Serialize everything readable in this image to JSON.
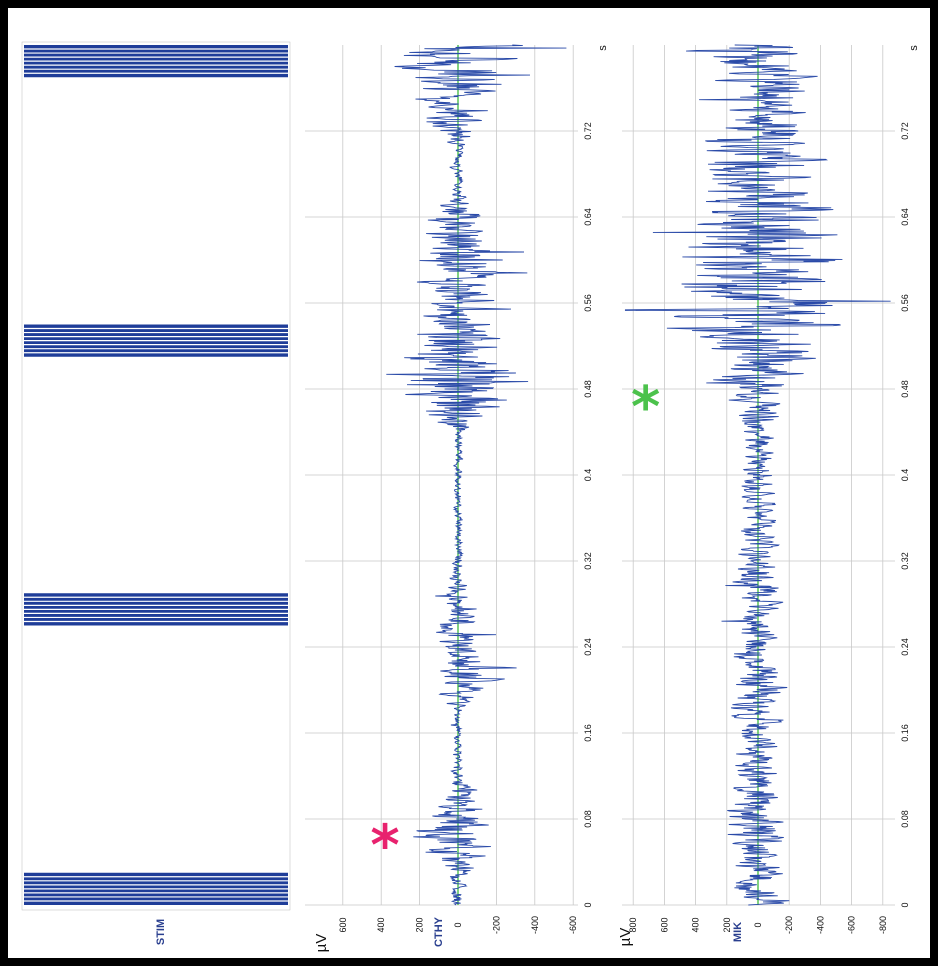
{
  "chart_data": [
    {
      "type": "line",
      "channel_label": "STIM",
      "series": [
        {
          "stim_bursts": [
            {
              "start": 0.0,
              "end": 0.03
            },
            {
              "start": 0.26,
              "end": 0.29
            },
            {
              "start": 0.51,
              "end": 0.54
            },
            {
              "start": 0.77,
              "end": 0.8
            }
          ]
        }
      ]
    },
    {
      "type": "line",
      "channel_label": "CTHY",
      "ylabel": "µV",
      "xlabel": "s",
      "ylim": [
        -650,
        650
      ],
      "yticks": [
        600,
        400,
        200,
        0,
        -200,
        -400,
        -600
      ],
      "xlim": [
        0,
        0.8
      ],
      "xticks": [
        0,
        0.08,
        0.16,
        0.24,
        0.32,
        0.4,
        0.48,
        0.56,
        0.64,
        0.72
      ],
      "xtick_labels": [
        "0",
        "0.08",
        "0.16",
        "0.24",
        "0.32",
        "0.4",
        "0.48",
        "0.56",
        "0.64",
        "0.72"
      ],
      "marker": {
        "symbol": "*",
        "x": 0.058,
        "y": 380,
        "color": "#e8226e"
      },
      "envelope": [
        {
          "t": 0.0,
          "amp": 60
        },
        {
          "t": 0.03,
          "amp": 80
        },
        {
          "t": 0.05,
          "amp": 260
        },
        {
          "t": 0.075,
          "amp": 300
        },
        {
          "t": 0.1,
          "amp": 120
        },
        {
          "t": 0.13,
          "amp": 25
        },
        {
          "t": 0.18,
          "amp": 30
        },
        {
          "t": 0.21,
          "amp": 270
        },
        {
          "t": 0.235,
          "amp": 160
        },
        {
          "t": 0.27,
          "amp": 150
        },
        {
          "t": 0.3,
          "amp": 60
        },
        {
          "t": 0.33,
          "amp": 25
        },
        {
          "t": 0.44,
          "amp": 30
        },
        {
          "t": 0.46,
          "amp": 300
        },
        {
          "t": 0.485,
          "amp": 560
        },
        {
          "t": 0.52,
          "amp": 380
        },
        {
          "t": 0.56,
          "amp": 250
        },
        {
          "t": 0.6,
          "amp": 300
        },
        {
          "t": 0.645,
          "amp": 180
        },
        {
          "t": 0.66,
          "amp": 40
        },
        {
          "t": 0.705,
          "amp": 40
        },
        {
          "t": 0.73,
          "amp": 260
        },
        {
          "t": 0.76,
          "amp": 280
        },
        {
          "t": 0.8,
          "amp": 520
        }
      ]
    },
    {
      "type": "line",
      "channel_label": "MIK",
      "ylabel": "µV",
      "xlabel": "s",
      "ylim": [
        -850,
        850
      ],
      "yticks": [
        800,
        600,
        400,
        200,
        0,
        -200,
        -400,
        -600,
        -800
      ],
      "xlim": [
        0,
        0.8
      ],
      "xticks": [
        0,
        0.08,
        0.16,
        0.24,
        0.32,
        0.4,
        0.48,
        0.56,
        0.64,
        0.72
      ],
      "xtick_labels": [
        "0",
        "0.08",
        "0.16",
        "0.24",
        "0.32",
        "0.4",
        "0.48",
        "0.56",
        "0.64",
        "0.72"
      ],
      "marker": {
        "symbol": "*",
        "x": 0.466,
        "y": 720,
        "color": "#4cc24c"
      },
      "envelope": [
        {
          "t": 0.0,
          "amp": 260
        },
        {
          "t": 0.04,
          "amp": 200
        },
        {
          "t": 0.08,
          "amp": 280
        },
        {
          "t": 0.12,
          "amp": 200
        },
        {
          "t": 0.16,
          "amp": 180
        },
        {
          "t": 0.21,
          "amp": 260
        },
        {
          "t": 0.25,
          "amp": 180
        },
        {
          "t": 0.3,
          "amp": 200
        },
        {
          "t": 0.36,
          "amp": 140
        },
        {
          "t": 0.44,
          "amp": 150
        },
        {
          "t": 0.475,
          "amp": 280
        },
        {
          "t": 0.5,
          "amp": 450
        },
        {
          "t": 0.55,
          "amp": 780
        },
        {
          "t": 0.6,
          "amp": 720
        },
        {
          "t": 0.66,
          "amp": 600
        },
        {
          "t": 0.7,
          "amp": 500
        },
        {
          "t": 0.74,
          "amp": 400
        },
        {
          "t": 0.8,
          "amp": 450
        }
      ]
    }
  ]
}
